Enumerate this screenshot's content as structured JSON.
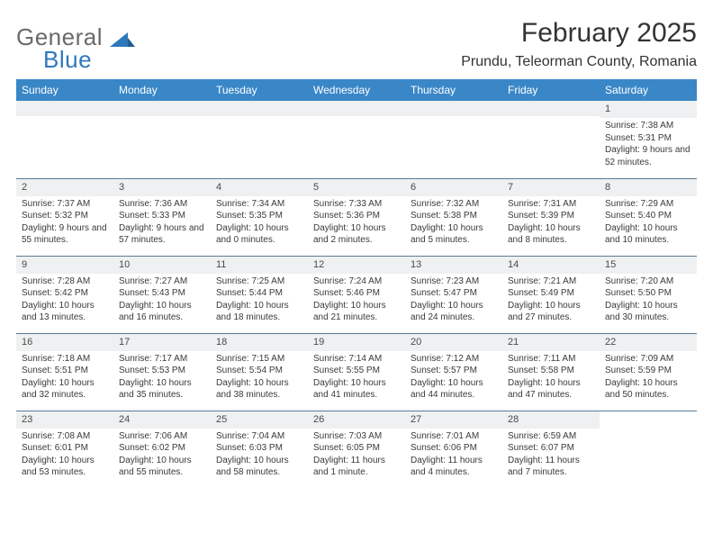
{
  "brand": {
    "line1": "General",
    "line2": "Blue",
    "logo_color": "#2f78bc",
    "text_color": "#6a6a6a"
  },
  "title": "February 2025",
  "location": "Prundu, Teleorman County, Romania",
  "colors": {
    "header_bg": "#3a87c7",
    "header_text": "#ffffff",
    "band_bg": "#eef0f1",
    "rule": "#5d7a94",
    "body_text": "#3a3a3a"
  },
  "daynames": [
    "Sunday",
    "Monday",
    "Tuesday",
    "Wednesday",
    "Thursday",
    "Friday",
    "Saturday"
  ],
  "weeks": [
    [
      null,
      null,
      null,
      null,
      null,
      null,
      {
        "n": "1",
        "sunrise": "7:38 AM",
        "sunset": "5:31 PM",
        "daylight": "9 hours and 52 minutes."
      }
    ],
    [
      {
        "n": "2",
        "sunrise": "7:37 AM",
        "sunset": "5:32 PM",
        "daylight": "9 hours and 55 minutes."
      },
      {
        "n": "3",
        "sunrise": "7:36 AM",
        "sunset": "5:33 PM",
        "daylight": "9 hours and 57 minutes."
      },
      {
        "n": "4",
        "sunrise": "7:34 AM",
        "sunset": "5:35 PM",
        "daylight": "10 hours and 0 minutes."
      },
      {
        "n": "5",
        "sunrise": "7:33 AM",
        "sunset": "5:36 PM",
        "daylight": "10 hours and 2 minutes."
      },
      {
        "n": "6",
        "sunrise": "7:32 AM",
        "sunset": "5:38 PM",
        "daylight": "10 hours and 5 minutes."
      },
      {
        "n": "7",
        "sunrise": "7:31 AM",
        "sunset": "5:39 PM",
        "daylight": "10 hours and 8 minutes."
      },
      {
        "n": "8",
        "sunrise": "7:29 AM",
        "sunset": "5:40 PM",
        "daylight": "10 hours and 10 minutes."
      }
    ],
    [
      {
        "n": "9",
        "sunrise": "7:28 AM",
        "sunset": "5:42 PM",
        "daylight": "10 hours and 13 minutes."
      },
      {
        "n": "10",
        "sunrise": "7:27 AM",
        "sunset": "5:43 PM",
        "daylight": "10 hours and 16 minutes."
      },
      {
        "n": "11",
        "sunrise": "7:25 AM",
        "sunset": "5:44 PM",
        "daylight": "10 hours and 18 minutes."
      },
      {
        "n": "12",
        "sunrise": "7:24 AM",
        "sunset": "5:46 PM",
        "daylight": "10 hours and 21 minutes."
      },
      {
        "n": "13",
        "sunrise": "7:23 AM",
        "sunset": "5:47 PM",
        "daylight": "10 hours and 24 minutes."
      },
      {
        "n": "14",
        "sunrise": "7:21 AM",
        "sunset": "5:49 PM",
        "daylight": "10 hours and 27 minutes."
      },
      {
        "n": "15",
        "sunrise": "7:20 AM",
        "sunset": "5:50 PM",
        "daylight": "10 hours and 30 minutes."
      }
    ],
    [
      {
        "n": "16",
        "sunrise": "7:18 AM",
        "sunset": "5:51 PM",
        "daylight": "10 hours and 32 minutes."
      },
      {
        "n": "17",
        "sunrise": "7:17 AM",
        "sunset": "5:53 PM",
        "daylight": "10 hours and 35 minutes."
      },
      {
        "n": "18",
        "sunrise": "7:15 AM",
        "sunset": "5:54 PM",
        "daylight": "10 hours and 38 minutes."
      },
      {
        "n": "19",
        "sunrise": "7:14 AM",
        "sunset": "5:55 PM",
        "daylight": "10 hours and 41 minutes."
      },
      {
        "n": "20",
        "sunrise": "7:12 AM",
        "sunset": "5:57 PM",
        "daylight": "10 hours and 44 minutes."
      },
      {
        "n": "21",
        "sunrise": "7:11 AM",
        "sunset": "5:58 PM",
        "daylight": "10 hours and 47 minutes."
      },
      {
        "n": "22",
        "sunrise": "7:09 AM",
        "sunset": "5:59 PM",
        "daylight": "10 hours and 50 minutes."
      }
    ],
    [
      {
        "n": "23",
        "sunrise": "7:08 AM",
        "sunset": "6:01 PM",
        "daylight": "10 hours and 53 minutes."
      },
      {
        "n": "24",
        "sunrise": "7:06 AM",
        "sunset": "6:02 PM",
        "daylight": "10 hours and 55 minutes."
      },
      {
        "n": "25",
        "sunrise": "7:04 AM",
        "sunset": "6:03 PM",
        "daylight": "10 hours and 58 minutes."
      },
      {
        "n": "26",
        "sunrise": "7:03 AM",
        "sunset": "6:05 PM",
        "daylight": "11 hours and 1 minute."
      },
      {
        "n": "27",
        "sunrise": "7:01 AM",
        "sunset": "6:06 PM",
        "daylight": "11 hours and 4 minutes."
      },
      {
        "n": "28",
        "sunrise": "6:59 AM",
        "sunset": "6:07 PM",
        "daylight": "11 hours and 7 minutes."
      },
      null
    ]
  ],
  "labels": {
    "sunrise": "Sunrise:",
    "sunset": "Sunset:",
    "daylight": "Daylight:"
  }
}
